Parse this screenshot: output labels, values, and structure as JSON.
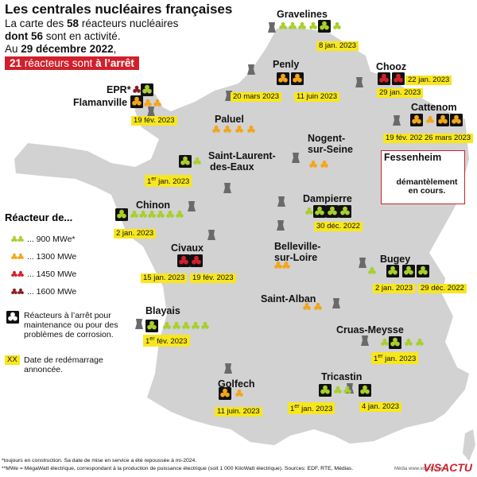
{
  "title": "Les centrales nucléaires françaises",
  "subtitle": {
    "line1_pre": "La carte des ",
    "line1_num": "58",
    "line1_post": " réacteurs nucléaires",
    "line2_bold": "dont 56",
    "line2_post": " sont en activité.",
    "line3_pre": "Au ",
    "line3_bold": "29 décembre 2022",
    "line3_post": ","
  },
  "alert": {
    "num": "21",
    "text": " réacteurs sont ",
    "bold": "à l’arrêt"
  },
  "colors": {
    "r900": "#a8cf2e",
    "r1300": "#f3a51a",
    "r1450": "#d0202b",
    "r1600": "#8b1a1f",
    "stopped": "#111111",
    "date_bg": "#f8e71c",
    "map": "#d2d2d2",
    "accent": "#d0202b"
  },
  "legend": {
    "title": "Réacteur de...",
    "items": [
      {
        "color": "r900",
        "label": "... 900 MWe*"
      },
      {
        "color": "r1300",
        "label": "... 1300 MWe"
      },
      {
        "color": "r1450",
        "label": "... 1450 MWe"
      },
      {
        "color": "r1600",
        "label": "... 1600 MWe"
      }
    ],
    "stopped": "Réacteurs à l’arrêt pour maintenance ou pour des problèmes de corrosion.",
    "date_sample": "XX",
    "date_text": "Date de redémarrage annoncée."
  },
  "plants": {
    "gravelines": {
      "name": "Gravelines",
      "dates": [
        "8 jan. 2023"
      ]
    },
    "flamanville": {
      "name": "Flamanville",
      "name_epr": "EPR*",
      "dates": [
        "19 fév. 2023"
      ]
    },
    "penly": {
      "name": "Penly",
      "dates": [
        "20 mars 2023",
        "11 juin 2023"
      ]
    },
    "chooz": {
      "name": "Chooz",
      "dates": [
        "22 jan. 2023",
        "29 jan. 2023"
      ]
    },
    "cattenom": {
      "name": "Cattenom",
      "dates": [
        "19 fév. 2023",
        "26 mars 2023"
      ]
    },
    "paluel": {
      "name": "Paluel"
    },
    "nogent": {
      "name_l1": "Nogent-",
      "name_l2": "sur-Seine"
    },
    "fessenheim": {
      "name": "Fessenheim",
      "note_l1": "démantèlement",
      "note_l2": "en cours."
    },
    "stlaurent": {
      "name_l1": "Saint-Laurent-",
      "name_l2": "des-Eaux",
      "date_sup": "er",
      "dates": [
        "1",
        " jan. 2023"
      ]
    },
    "chinon": {
      "name": "Chinon",
      "dates": [
        "2 jan. 2023"
      ]
    },
    "dampierre": {
      "name": "Dampierre",
      "dates": [
        "30 déc. 2022"
      ]
    },
    "belleville": {
      "name_l1": "Belleville-",
      "name_l2": "sur-Loire"
    },
    "civaux": {
      "name": "Civaux",
      "dates": [
        "15 jan. 2023",
        "19 fév. 2023"
      ]
    },
    "bugey": {
      "name": "Bugey",
      "dates": [
        "2 jan. 2023",
        "29 déc. 2022"
      ]
    },
    "stalban": {
      "name": "Saint-Alban"
    },
    "blayais": {
      "name": "Blayais",
      "date_sup": "er",
      "dates": [
        "1",
        " fév. 2023"
      ]
    },
    "cruas": {
      "name": "Cruas-Meysse",
      "date_sup": "er",
      "dates": [
        "1",
        " jan. 2023"
      ]
    },
    "tricastin": {
      "name": "Tricastin",
      "date_sup": "er",
      "dates": [
        "1",
        " jan. 2023",
        "4 jan. 2023"
      ]
    },
    "golfech": {
      "name": "Golfech",
      "dates": [
        "11 juin. 2023"
      ]
    }
  },
  "footnotes": [
    "*toujours en construction. Sa date de mise en service a été repoussée à mi-2024.",
    "**MWe = MégaWatt électrique, correspondant à la production de puissance électrique (soit 1 000 KiloWatt électrique). Sources: EDF, RTE, Médias."
  ],
  "logo": "VISACTU",
  "credit": "Média www.visactu.com"
}
